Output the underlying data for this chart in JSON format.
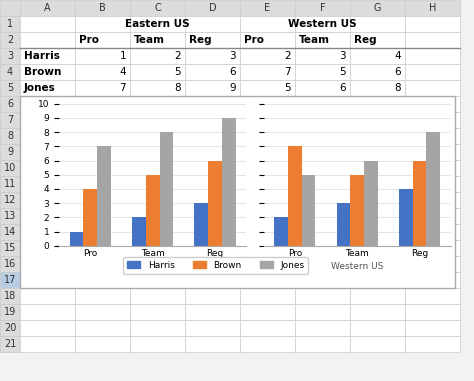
{
  "col_headers": [
    "A",
    "B",
    "C",
    "D",
    "E",
    "F",
    "G",
    "H"
  ],
  "row_numbers": [
    "1",
    "2",
    "3",
    "4",
    "5",
    "6",
    "7",
    "8",
    "9",
    "10",
    "11",
    "12",
    "13",
    "14",
    "15",
    "16",
    "17",
    "18",
    "19",
    "20",
    "21"
  ],
  "table_data": {
    "row1": {
      "B": "Eastern US",
      "F": "Western US"
    },
    "row2": {
      "B": "Pro",
      "C": "Team",
      "D": "Reg",
      "E": "Pro",
      "F": "Team",
      "G": "Reg"
    },
    "row3": {
      "A": "Harris",
      "B": "1",
      "C": "2",
      "D": "3",
      "E": "2",
      "F": "3",
      "G": "4"
    },
    "row4": {
      "A": "Brown",
      "B": "4",
      "C": "5",
      "D": "6",
      "E": "7",
      "F": "5",
      "G": "6"
    },
    "row5": {
      "A": "Jones",
      "B": "7",
      "C": "8",
      "D": "9",
      "E": "5",
      "F": "6",
      "G": "8"
    }
  },
  "chart": {
    "series": {
      "Harris": {
        "color": "#4472C4",
        "eastern": [
          1,
          2,
          3
        ],
        "western": [
          2,
          3,
          4
        ]
      },
      "Brown": {
        "color": "#ED7D31",
        "eastern": [
          4,
          5,
          6
        ],
        "western": [
          7,
          5,
          6
        ]
      },
      "Jones": {
        "color": "#A5A5A5",
        "eastern": [
          7,
          8,
          9
        ],
        "western": [
          5,
          6,
          8
        ]
      }
    },
    "subcategories": [
      "Pro",
      "Team",
      "Reg"
    ],
    "group_labels": [
      "Eastern US",
      "Western US"
    ],
    "ylim": [
      0,
      10
    ],
    "yticks": [
      0,
      1,
      2,
      3,
      4,
      5,
      6,
      7,
      8,
      9,
      10
    ],
    "bar_width": 0.22
  },
  "excel_bg": "#F2F2F2",
  "header_bg": "#E0E0E0",
  "cell_bg": "#FFFFFF",
  "grid_color": "#CCCCCC",
  "header_font_color": "#000000",
  "chart_border": "#AAAAAA"
}
